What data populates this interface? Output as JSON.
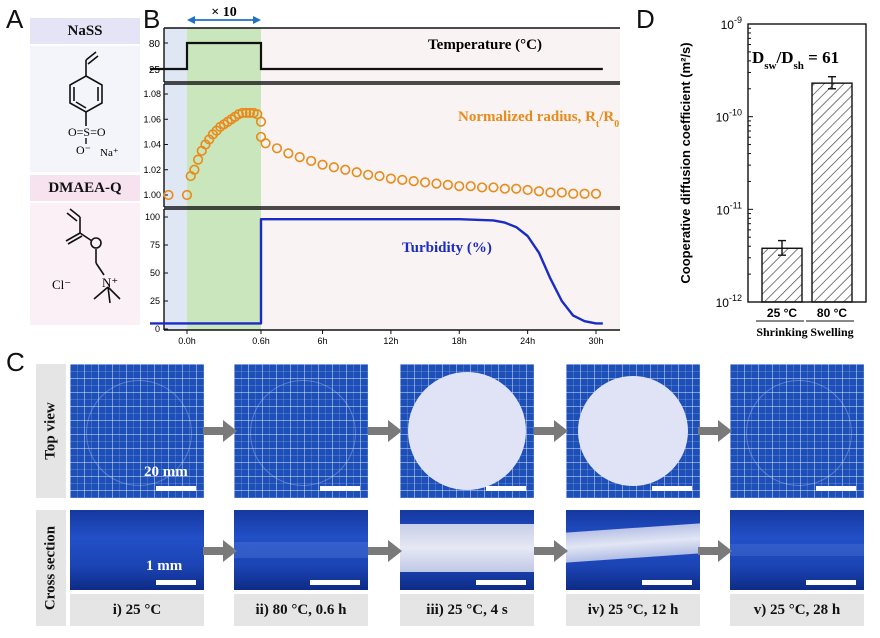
{
  "panel_a": {
    "letter": "A",
    "monomer1_name": "NaSS",
    "monomer1_groups": {
      "sulfonate": "O=S=O",
      "oxygen_minus": "O⁻",
      "counter_ion": "Na⁺"
    },
    "monomer2_name": "DMAEA-Q",
    "monomer2_groups": {
      "chloride": "Cl⁻",
      "ammonium": "N⁺"
    }
  },
  "panel_b": {
    "letter": "B",
    "cycle_label": "× 10",
    "temperature_label": "Temperature (°C)",
    "radius_label": "Normalized radius, R",
    "radius_label_sub_t": "t",
    "radius_label_mid": "/R",
    "radius_label_sub_0": "0",
    "turbidity_label": "Turbidity (%)",
    "x_tick_labels": [
      "0.0h",
      "0.6h",
      "6h",
      "12h",
      "18h",
      "24h",
      "30h"
    ],
    "temp_tick_labels": [
      "80",
      "25"
    ],
    "radius_tick_labels": [
      "1.08",
      "1.06",
      "1.04",
      "1.02",
      "1.00"
    ],
    "turb_tick_labels": [
      "100",
      "75",
      "50",
      "25",
      "0"
    ]
  },
  "panel_d": {
    "letter": "D",
    "ratio_label": "D",
    "ratio_sub_sw": "sw",
    "ratio_mid": "/D",
    "ratio_sub_sh": "sh",
    "ratio_value": " = 61",
    "y_axis_label": "Cooperative diffusion coefficient (m²/s)",
    "y_ticks": [
      {
        "base": "10",
        "exp": "-9"
      },
      {
        "base": "10",
        "exp": "-10"
      },
      {
        "base": "10",
        "exp": "-11"
      },
      {
        "base": "10",
        "exp": "-12"
      }
    ]
  },
  "chart_data": [
    {
      "type": "line",
      "title": "Temperature (°C)",
      "xlabel": "",
      "ylabel": "",
      "x": [
        -0.3,
        0.0,
        0.0,
        0.6,
        0.6,
        30.6
      ],
      "y": [
        25,
        25,
        80,
        80,
        25,
        25
      ],
      "x_note": "0–0.6 h segment shown expanded ×10 (highlighted green)",
      "ylim": [
        0,
        100
      ]
    },
    {
      "type": "scatter",
      "title": "Normalized radius, Rt/R0",
      "x": [
        -0.15,
        0.0,
        0.03,
        0.06,
        0.09,
        0.12,
        0.15,
        0.18,
        0.21,
        0.24,
        0.27,
        0.3,
        0.33,
        0.36,
        0.39,
        0.42,
        0.45,
        0.48,
        0.51,
        0.54,
        0.57,
        0.6,
        0.6,
        1,
        2,
        3,
        4,
        5,
        6,
        7,
        8,
        9,
        10,
        11,
        12,
        13,
        14,
        15,
        16,
        17,
        18,
        19,
        20,
        21,
        22,
        23,
        24,
        25,
        26,
        27,
        28,
        29,
        30
      ],
      "y": [
        1.0,
        1.0,
        1.015,
        1.02,
        1.028,
        1.035,
        1.04,
        1.044,
        1.048,
        1.051,
        1.054,
        1.056,
        1.058,
        1.06,
        1.062,
        1.064,
        1.065,
        1.065,
        1.065,
        1.065,
        1.064,
        1.058,
        1.046,
        1.041,
        1.037,
        1.033,
        1.03,
        1.027,
        1.024,
        1.022,
        1.02,
        1.018,
        1.016,
        1.015,
        1.013,
        1.012,
        1.011,
        1.01,
        1.009,
        1.008,
        1.007,
        1.007,
        1.006,
        1.006,
        1.005,
        1.005,
        1.004,
        1.003,
        1.002,
        1.002,
        1.001,
        1.001,
        1.001
      ],
      "ylim": [
        0.99,
        1.08
      ]
    },
    {
      "type": "line",
      "title": "Turbidity (%)",
      "x": [
        -0.3,
        0.6,
        0.6,
        6,
        12,
        18,
        21,
        22,
        23,
        24,
        25,
        26,
        27,
        28,
        29,
        30,
        30.6
      ],
      "y": [
        5,
        5,
        98,
        98,
        98,
        98,
        97,
        95,
        91,
        83,
        68,
        45,
        25,
        12,
        7,
        5,
        5
      ],
      "ylim": [
        0,
        100
      ]
    },
    {
      "type": "bar",
      "title": "Dsw/Dsh = 61",
      "categories": [
        "25 °C",
        "80 °C"
      ],
      "category_groups": [
        "Shrinking",
        "Swelling"
      ],
      "values": [
        3.8e-12,
        2.3e-10
      ],
      "errors": [
        [
          3.2e-12,
          4.6e-12
        ],
        [
          2e-10,
          2.7e-10
        ]
      ],
      "yscale": "log",
      "ylim": [
        1e-12,
        1e-09
      ],
      "ylabel": "Cooperative diffusion coefficient (m²/s)"
    }
  ],
  "panel_c": {
    "letter": "C",
    "row1_label": "Top view",
    "row2_label": "Cross section",
    "scale_top": "20 mm",
    "scale_bottom": "1 mm",
    "captions": [
      "i) 25 °C",
      "ii) 80 °C, 0.6 h",
      "iii) 25 °C, 4 s",
      "iv) 25 °C, 12 h",
      "v) 25 °C, 28 h"
    ],
    "colors": {
      "grid_blue": "#1d4fb8",
      "gel_white": "#dfe3f5",
      "arrow_gray": "#7a7a7a",
      "caption_bg": "#e5e5e5"
    }
  }
}
